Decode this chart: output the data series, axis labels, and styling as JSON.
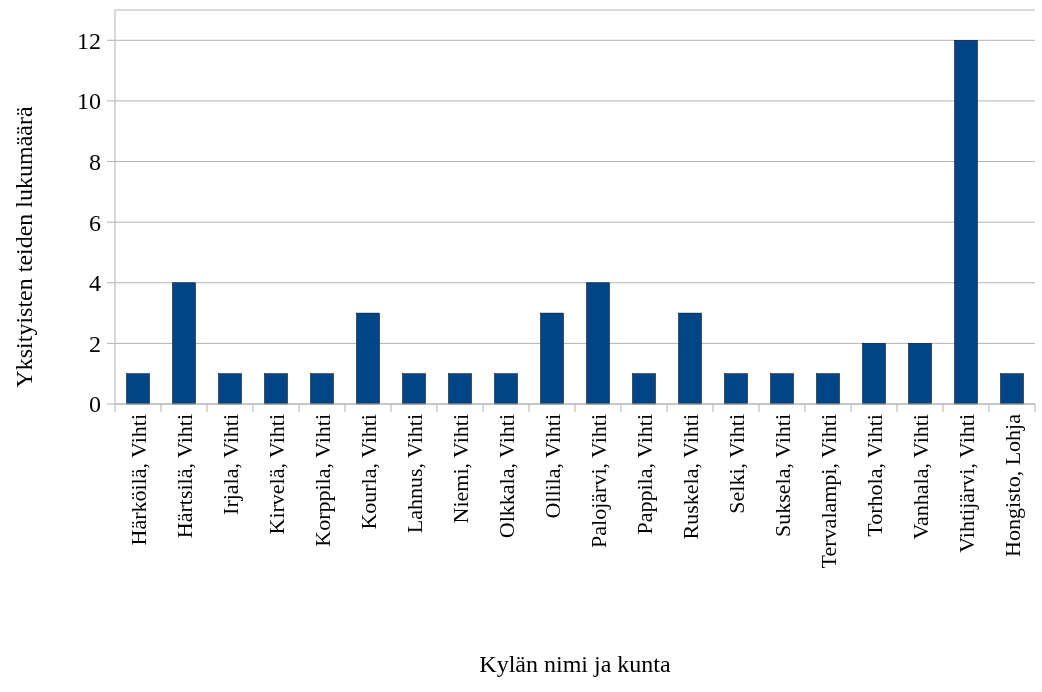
{
  "chart_data": {
    "type": "bar",
    "xlabel": "Kylän nimi ja kunta",
    "ylabel": "Yksityisten teiden lukumäärä",
    "categories": [
      "Härköilä, Vihti",
      "Härtsilä, Vihti",
      "Irjala, Vihti",
      "Kirvelä, Vihti",
      "Korppila, Vihti",
      "Kourla, Vihti",
      "Lahnus, Vihti",
      "Niemi, Vihti",
      "Olkkala, Vihti",
      "Ollila, Vihti",
      "Palojärvi, Vihti",
      "Pappila, Vihti",
      "Ruskela, Vihti",
      "Selki, Vihti",
      "Suksela, Vihti",
      "Tervalampi, Vihti",
      "Torhola, Vihti",
      "Vanhala, Vihti",
      "Vihtijärvi, Vihti",
      "Hongisto, Lohja"
    ],
    "values": [
      1,
      4,
      1,
      1,
      1,
      3,
      1,
      1,
      1,
      3,
      4,
      1,
      3,
      1,
      1,
      1,
      2,
      2,
      12,
      1
    ],
    "color": "#004586",
    "ylim": [
      0,
      13
    ],
    "yticks": [
      0,
      2,
      4,
      6,
      8,
      10,
      12
    ],
    "grid": "y"
  }
}
